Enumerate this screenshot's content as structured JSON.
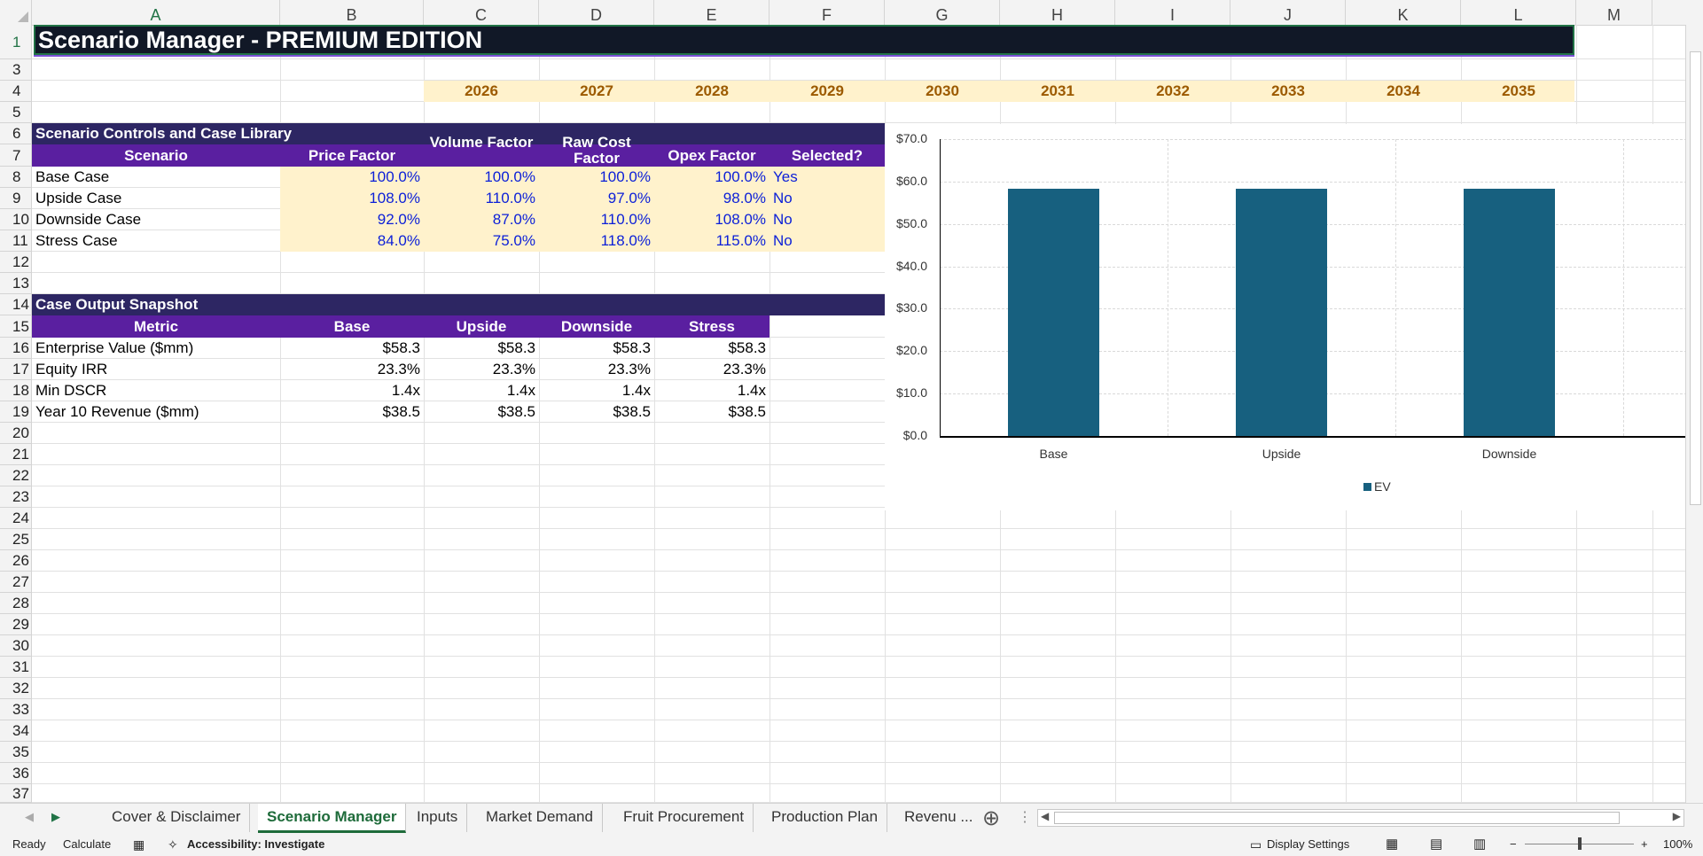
{
  "columns": [
    "A",
    "B",
    "C",
    "D",
    "E",
    "F",
    "G",
    "H",
    "I",
    "J",
    "K",
    "L",
    "M"
  ],
  "rows": [
    "1",
    "3",
    "4",
    "5",
    "6",
    "7",
    "8",
    "9",
    "10",
    "11",
    "12",
    "13",
    "14",
    "15",
    "16",
    "17",
    "18",
    "19",
    "20",
    "21",
    "22",
    "23",
    "24",
    "25",
    "26",
    "27",
    "28",
    "29",
    "30",
    "31",
    "32",
    "33",
    "34",
    "35",
    "36",
    "37"
  ],
  "title": "Scenario Manager - PREMIUM EDITION",
  "years": [
    "2026",
    "2027",
    "2028",
    "2029",
    "2030",
    "2031",
    "2032",
    "2033",
    "2034",
    "2035"
  ],
  "controls": {
    "section_title": "Scenario Controls and Case Library",
    "headers": [
      "Scenario",
      "Price Factor",
      "Volume Factor",
      "Raw Cost Factor",
      "Opex Factor",
      "Selected?"
    ],
    "rows": [
      {
        "name": "Base Case",
        "price": "100.0%",
        "volume": "100.0%",
        "raw": "100.0%",
        "opex": "100.0%",
        "selected": "Yes"
      },
      {
        "name": "Upside Case",
        "price": "108.0%",
        "volume": "110.0%",
        "raw": "97.0%",
        "opex": "98.0%",
        "selected": "No"
      },
      {
        "name": "Downside Case",
        "price": "92.0%",
        "volume": "87.0%",
        "raw": "110.0%",
        "opex": "108.0%",
        "selected": "No"
      },
      {
        "name": "Stress Case",
        "price": "84.0%",
        "volume": "75.0%",
        "raw": "118.0%",
        "opex": "115.0%",
        "selected": "No"
      }
    ]
  },
  "snapshot": {
    "section_title": "Case Output Snapshot",
    "headers": [
      "Metric",
      "Base",
      "Upside",
      "Downside",
      "Stress"
    ],
    "rows": [
      {
        "metric": "Enterprise Value ($mm)",
        "base": "$58.3",
        "upside": "$58.3",
        "downside": "$58.3",
        "stress": "$58.3"
      },
      {
        "metric": "Equity IRR",
        "base": "23.3%",
        "upside": "23.3%",
        "downside": "23.3%",
        "stress": "23.3%"
      },
      {
        "metric": "Min DSCR",
        "base": "1.4x",
        "upside": "1.4x",
        "downside": "1.4x",
        "stress": "1.4x"
      },
      {
        "metric": "Year 10 Revenue ($mm)",
        "base": "$38.5",
        "upside": "$38.5",
        "downside": "$38.5",
        "stress": "$38.5"
      }
    ]
  },
  "chart_data": {
    "type": "bar",
    "categories": [
      "Base",
      "Upside",
      "Downside"
    ],
    "series": [
      {
        "name": "EV",
        "values": [
          58.3,
          58.3,
          58.3
        ]
      }
    ],
    "yticks": [
      "$0.0",
      "$10.0",
      "$20.0",
      "$30.0",
      "$40.0",
      "$50.0",
      "$60.0",
      "$70.0"
    ],
    "ylim": [
      0,
      70
    ],
    "grid": true,
    "legend": "bottom",
    "bar_color": "#17607f"
  },
  "tabs": [
    "Cover & Disclaimer",
    "Scenario Manager",
    "Inputs",
    "Market Demand",
    "Fruit Procurement",
    "Production Plan",
    "Revenu ..."
  ],
  "active_tab": "Scenario Manager",
  "status": {
    "ready": "Ready",
    "calculate": "Calculate",
    "accessibility": "Accessibility: Investigate",
    "display_settings": "Display Settings",
    "zoom": "100%"
  }
}
